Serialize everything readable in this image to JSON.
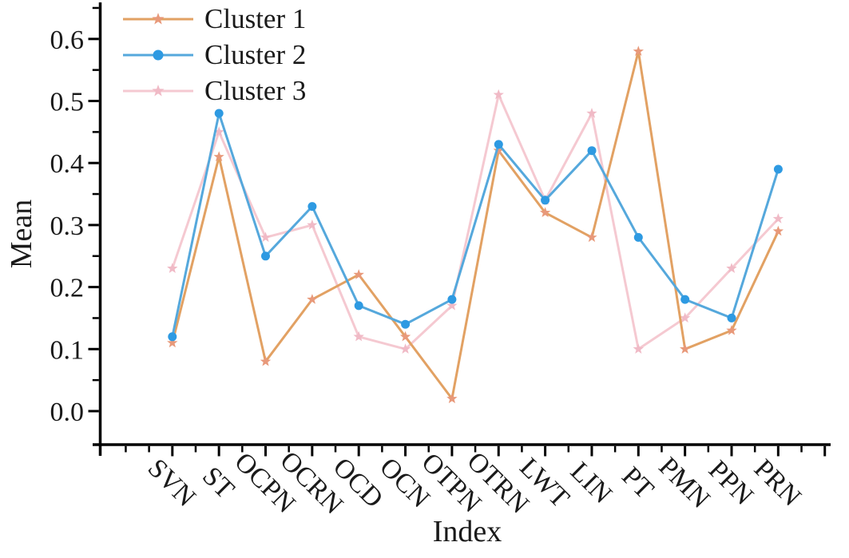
{
  "chart_data": {
    "type": "line",
    "title": "",
    "xlabel": "Index",
    "ylabel": "Mean",
    "ylim": [
      -0.05,
      0.66
    ],
    "grid": false,
    "legend_position": "top-left",
    "y_ticks": [
      0.0,
      0.1,
      0.2,
      0.3,
      0.4,
      0.5,
      0.6
    ],
    "y_tick_labels": [
      "0.0",
      "0.1",
      "0.2",
      "0.3",
      "0.4",
      "0.5",
      "0.6"
    ],
    "y_minor_step": 0.05,
    "categories": [
      "SVN",
      "ST",
      "OCPN",
      "OCRN",
      "OCD",
      "OCN",
      "OTPN",
      "OTRN",
      "LWT",
      "LIN",
      "PT",
      "PMN",
      "PPN",
      "PRN"
    ],
    "series": [
      {
        "name": "Cluster 1",
        "marker": "star",
        "line_color": "#E2A163",
        "marker_color": "#E8997A",
        "values": [
          0.11,
          0.41,
          0.08,
          0.18,
          0.22,
          0.12,
          0.02,
          0.42,
          0.32,
          0.28,
          0.58,
          0.1,
          0.13,
          0.29
        ]
      },
      {
        "name": "Cluster 2",
        "marker": "circle",
        "line_color": "#55A8DC",
        "marker_color": "#2E9AE2",
        "values": [
          0.12,
          0.48,
          0.25,
          0.33,
          0.17,
          0.14,
          0.18,
          0.43,
          0.34,
          0.42,
          0.28,
          0.18,
          0.15,
          0.39
        ]
      },
      {
        "name": "Cluster 3",
        "marker": "star",
        "line_color": "#F5C9D1",
        "marker_color": "#F0BAC6",
        "values": [
          0.23,
          0.45,
          0.28,
          0.3,
          0.12,
          0.1,
          0.17,
          0.51,
          0.34,
          0.48,
          0.1,
          0.15,
          0.23,
          0.31
        ]
      }
    ],
    "axis_color": "#000000",
    "text_color": "#1a1a1a"
  }
}
